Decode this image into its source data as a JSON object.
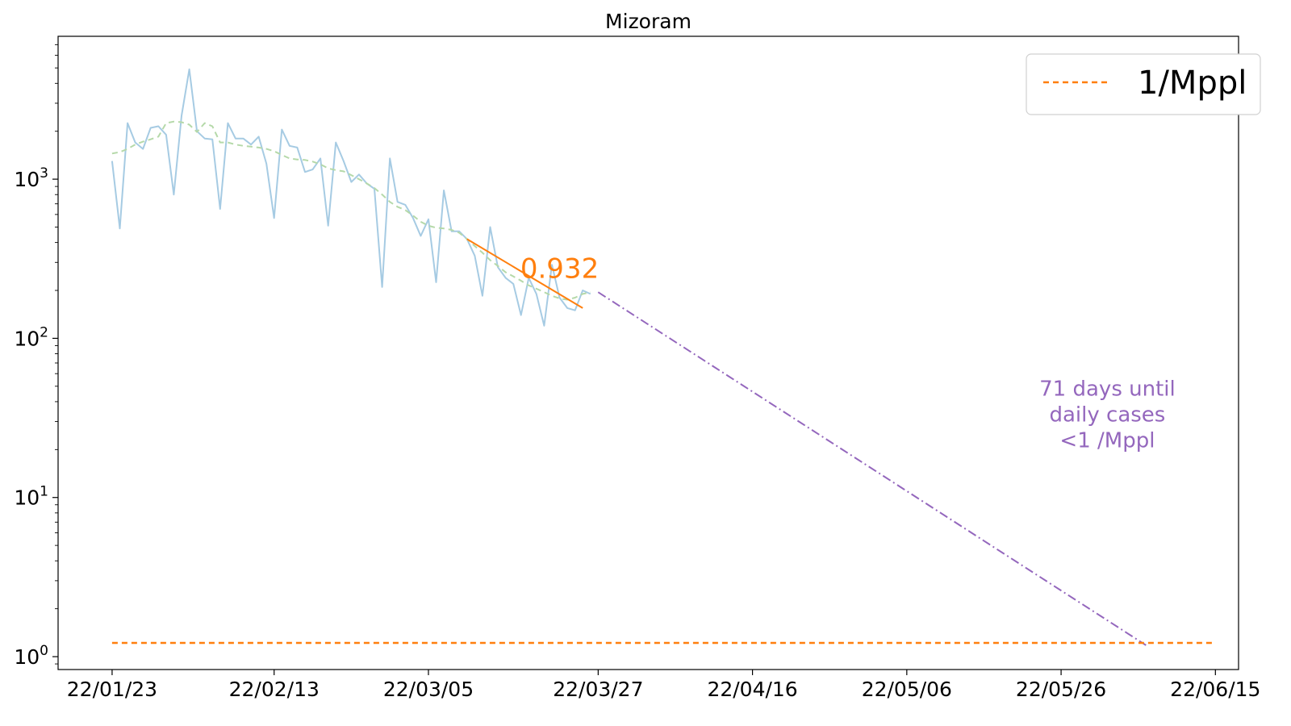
{
  "chart_data": {
    "type": "line",
    "title": "Mizoram",
    "xlabel": "",
    "ylabel": "",
    "y_scale": "log",
    "ylim": [
      0.83,
      7900
    ],
    "xlim": [
      "2022-01-16",
      "2022-06-18"
    ],
    "x_ticks": [
      "22/01/23",
      "22/02/13",
      "22/03/05",
      "22/03/27",
      "22/04/16",
      "22/05/06",
      "22/05/26",
      "22/06/15"
    ],
    "x_tick_dates": [
      "2022-01-23",
      "2022-02-13",
      "2022-03-05",
      "2022-03-27",
      "2022-04-16",
      "2022-05-06",
      "2022-05-26",
      "2022-06-15"
    ],
    "y_ticks": [
      {
        "value": 1,
        "base": "10",
        "exp": "0"
      },
      {
        "value": 10,
        "base": "10",
        "exp": "1"
      },
      {
        "value": 100,
        "base": "10",
        "exp": "2"
      },
      {
        "value": 1000,
        "base": "10",
        "exp": "3"
      }
    ],
    "grid": false,
    "legend": {
      "position": "top-right",
      "entries": [
        {
          "label": "1/Mppl",
          "color": "#ff7f0e",
          "style": "dashed"
        }
      ]
    },
    "series": [
      {
        "role": "daily cases",
        "color": "#a6cbe3",
        "style": "solid",
        "x": [
          "2022-01-23",
          "2022-01-24",
          "2022-01-25",
          "2022-01-26",
          "2022-01-27",
          "2022-01-28",
          "2022-01-29",
          "2022-01-30",
          "2022-01-31",
          "2022-02-01",
          "2022-02-02",
          "2022-02-03",
          "2022-02-04",
          "2022-02-05",
          "2022-02-06",
          "2022-02-07",
          "2022-02-08",
          "2022-02-09",
          "2022-02-10",
          "2022-02-11",
          "2022-02-12",
          "2022-02-13",
          "2022-02-14",
          "2022-02-15",
          "2022-02-16",
          "2022-02-17",
          "2022-02-18",
          "2022-02-19",
          "2022-02-20",
          "2022-02-21",
          "2022-02-22",
          "2022-02-23",
          "2022-02-24",
          "2022-02-25",
          "2022-02-26",
          "2022-02-27",
          "2022-02-28",
          "2022-03-01",
          "2022-03-02",
          "2022-03-03",
          "2022-03-04",
          "2022-03-05",
          "2022-03-06",
          "2022-03-07",
          "2022-03-08",
          "2022-03-09",
          "2022-03-10",
          "2022-03-11",
          "2022-03-12",
          "2022-03-13",
          "2022-03-14",
          "2022-03-15",
          "2022-03-16",
          "2022-03-17",
          "2022-03-18",
          "2022-03-19",
          "2022-03-20",
          "2022-03-21",
          "2022-03-22",
          "2022-03-23",
          "2022-03-24",
          "2022-03-25",
          "2022-03-26"
        ],
        "y": [
          1300,
          490,
          2250,
          1700,
          1550,
          2100,
          2150,
          1900,
          800,
          2500,
          4900,
          2000,
          1800,
          1780,
          650,
          2250,
          1800,
          1800,
          1650,
          1850,
          1250,
          570,
          2050,
          1620,
          1580,
          1110,
          1150,
          1350,
          510,
          1700,
          1300,
          960,
          1070,
          940,
          870,
          210,
          1350,
          720,
          690,
          570,
          440,
          560,
          225,
          850,
          470,
          470,
          420,
          330,
          185,
          500,
          280,
          240,
          220,
          140,
          240,
          190,
          120,
          290,
          180,
          155,
          150,
          200,
          190
        ]
      },
      {
        "role": "7-day average",
        "color": "#b5d9a9",
        "style": "dashed",
        "x": [
          "2022-01-23",
          "2022-01-24",
          "2022-01-25",
          "2022-01-26",
          "2022-01-27",
          "2022-01-28",
          "2022-01-29",
          "2022-01-30",
          "2022-01-31",
          "2022-02-01",
          "2022-02-02",
          "2022-02-03",
          "2022-02-04",
          "2022-02-05",
          "2022-02-06",
          "2022-02-07",
          "2022-02-08",
          "2022-02-09",
          "2022-02-10",
          "2022-02-11",
          "2022-02-12",
          "2022-02-13",
          "2022-02-14",
          "2022-02-15",
          "2022-02-16",
          "2022-02-17",
          "2022-02-18",
          "2022-02-19",
          "2022-02-20",
          "2022-02-21",
          "2022-02-22",
          "2022-02-23",
          "2022-02-24",
          "2022-02-25",
          "2022-02-26",
          "2022-02-27",
          "2022-02-28",
          "2022-03-01",
          "2022-03-02",
          "2022-03-03",
          "2022-03-04",
          "2022-03-05",
          "2022-03-06",
          "2022-03-07",
          "2022-03-08",
          "2022-03-09",
          "2022-03-10",
          "2022-03-11",
          "2022-03-12",
          "2022-03-13",
          "2022-03-14",
          "2022-03-15",
          "2022-03-16",
          "2022-03-17",
          "2022-03-18",
          "2022-03-19",
          "2022-03-20",
          "2022-03-21",
          "2022-03-22",
          "2022-03-23",
          "2022-03-24",
          "2022-03-25",
          "2022-03-26"
        ],
        "y": [
          1450,
          1480,
          1550,
          1650,
          1720,
          1780,
          1850,
          2250,
          2300,
          2280,
          2200,
          1980,
          2250,
          2150,
          1700,
          1700,
          1650,
          1620,
          1600,
          1580,
          1550,
          1500,
          1420,
          1350,
          1330,
          1320,
          1290,
          1240,
          1170,
          1140,
          1120,
          1060,
          1000,
          940,
          880,
          800,
          720,
          670,
          640,
          590,
          540,
          510,
          495,
          490,
          480,
          460,
          420,
          380,
          345,
          310,
          285,
          260,
          245,
          230,
          215,
          205,
          195,
          185,
          178,
          175,
          180,
          190,
          195
        ]
      },
      {
        "role": "fitted trend",
        "color": "#ff7f0e",
        "style": "solid",
        "x": [
          "2022-03-10",
          "2022-03-25"
        ],
        "y": [
          420,
          155
        ]
      },
      {
        "role": "projection",
        "color": "#9467bd",
        "style": "dashdot",
        "x": [
          "2022-03-27",
          "2022-06-06"
        ],
        "y": [
          195,
          1.18
        ]
      },
      {
        "name": "1/Mppl",
        "color": "#ff7f0e",
        "style": "dashed",
        "x": [
          "2022-01-23",
          "2022-06-15"
        ],
        "y": [
          1.22,
          1.22
        ]
      }
    ],
    "annotations": [
      {
        "text": "0.932",
        "x": "2022-03-22",
        "y": 240,
        "color": "#ff7f0e"
      },
      {
        "lines": [
          "71 days until",
          "daily cases",
          "<1 /Mppl"
        ],
        "x": "2022-06-01",
        "y": 28,
        "color": "#9467bd"
      }
    ]
  }
}
